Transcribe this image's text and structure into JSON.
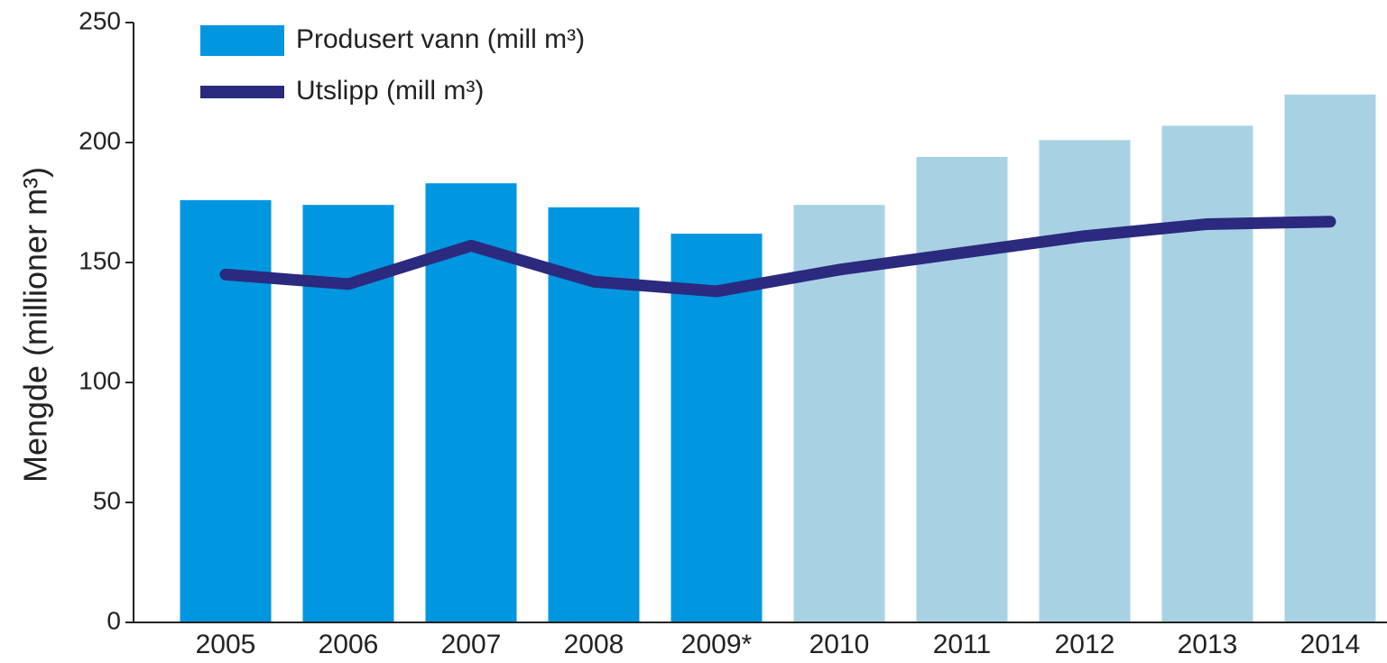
{
  "chart_data": {
    "type": "bar_line",
    "y_label": "Mengde (millioner m³)",
    "categories": [
      "2005",
      "2006",
      "2007",
      "2008",
      "2009*",
      "2010",
      "2011",
      "2012",
      "2013",
      "2014"
    ],
    "series": [
      {
        "name": "Produsert vann (mill m³)",
        "type": "bar",
        "color": "#0096e0",
        "colors": [
          "#0096e0",
          "#0096e0",
          "#0096e0",
          "#0096e0",
          "#0096e0",
          "#a8d2e3",
          "#a8d2e3",
          "#a8d2e3",
          "#a8d2e3",
          "#a8d2e3"
        ],
        "values": [
          176,
          174,
          183,
          173,
          162,
          174,
          194,
          201,
          207,
          220
        ]
      },
      {
        "name": "Utslipp (mill m³)",
        "type": "line",
        "color": "#2b2a7e",
        "values": [
          145,
          141,
          157,
          142,
          138,
          147,
          154,
          161,
          166,
          167
        ]
      }
    ],
    "ylim": [
      0,
      250
    ],
    "yticks": [
      0,
      50,
      100,
      150,
      200,
      250
    ],
    "legend": "upper left"
  }
}
